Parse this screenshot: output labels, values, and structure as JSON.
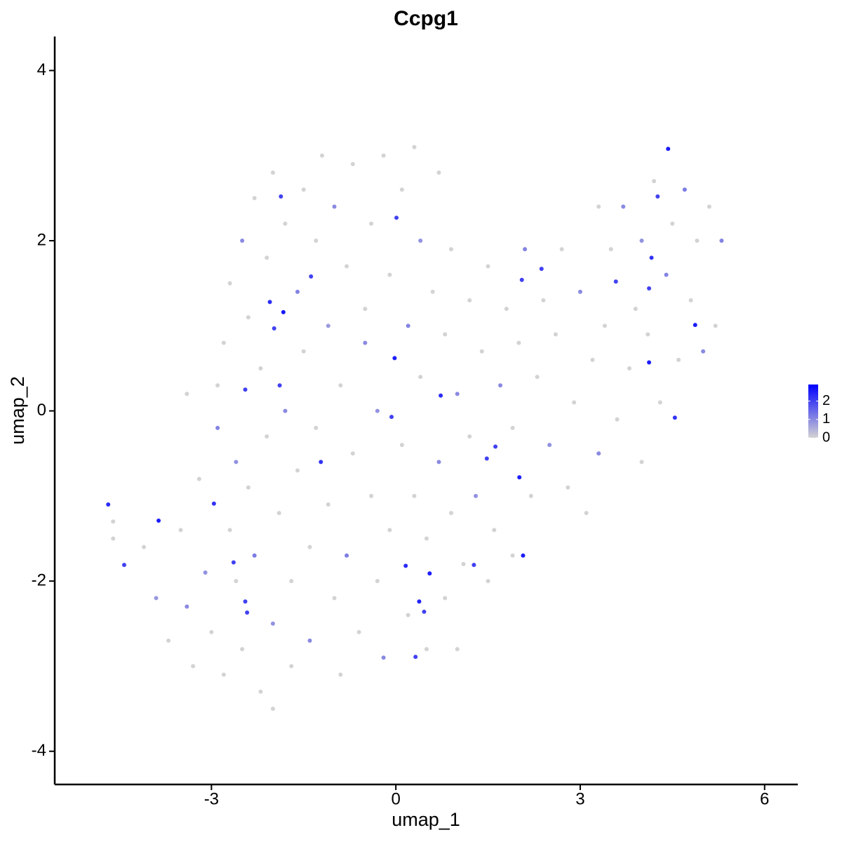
{
  "chart_data": {
    "type": "scatter",
    "title": "Ccpg1",
    "x_label": "umap_1",
    "y_label": "umap_2",
    "xlim": [
      -5.55,
      6.54
    ],
    "ylim": [
      -4.39,
      4.4
    ],
    "xticks": [
      -3,
      0,
      3,
      6
    ],
    "yticks": [
      -4,
      -2,
      0,
      2,
      4
    ],
    "x": [
      -4.1,
      -3.9,
      -3.7,
      -3.5,
      -3.4,
      -3.3,
      -3.2,
      -3.1,
      -3.0,
      -2.9,
      -2.9,
      -2.8,
      -2.8,
      -2.7,
      -2.7,
      -2.6,
      -2.6,
      -2.5,
      -2.5,
      -2.4,
      -2.4,
      -2.3,
      -2.3,
      -2.2,
      -2.2,
      -2.1,
      -2.1,
      -2.0,
      -2.0,
      -1.9,
      -1.8,
      -1.8,
      -1.7,
      -1.7,
      -1.6,
      -1.6,
      -1.5,
      -1.5,
      -1.4,
      -1.4,
      -1.3,
      -1.3,
      -1.2,
      -1.1,
      -1.1,
      -1.0,
      -1.0,
      -0.9,
      -0.9,
      -0.8,
      -0.8,
      -0.7,
      -0.7,
      -0.6,
      -0.5,
      -0.5,
      -0.4,
      -0.4,
      -0.3,
      -0.3,
      -0.2,
      -0.2,
      -0.1,
      -0.1,
      0.1,
      0.1,
      0.2,
      0.2,
      0.3,
      0.3,
      0.4,
      0.4,
      0.5,
      0.5,
      0.6,
      0.7,
      0.7,
      0.8,
      0.8,
      0.9,
      0.9,
      1.0,
      1.0,
      1.1,
      1.2,
      1.2,
      1.3,
      1.4,
      1.5,
      1.5,
      1.6,
      1.7,
      1.8,
      1.9,
      1.9,
      2.0,
      2.1,
      2.2,
      2.3,
      2.4,
      2.5,
      2.6,
      2.7,
      2.8,
      2.9,
      3.0,
      3.1,
      3.2,
      3.3,
      3.3,
      3.4,
      3.5,
      3.6,
      3.7,
      3.8,
      3.9,
      4.0,
      4.0,
      4.1,
      4.2,
      4.3,
      4.4,
      4.5,
      4.6,
      4.7,
      4.8,
      4.9,
      5.0,
      5.1,
      5.2,
      5.3,
      -4.6,
      -4.6,
      -3.4,
      -2.0,
      -4.68,
      -4.42,
      -3.86,
      -2.96,
      -2.64,
      -2.05,
      -1.83,
      -1.98,
      -1.87,
      -1.22,
      -1.38,
      0.01,
      -0.02,
      0.73,
      -0.07,
      1.48,
      1.62,
      2.01,
      2.07,
      0.16,
      0.55,
      0.38,
      0.46,
      0.32,
      1.27,
      2.05,
      2.37,
      4.12,
      4.16,
      4.12,
      4.87,
      4.54,
      4.43,
      4.26,
      3.58,
      -2.45,
      -1.89,
      -2.45,
      -2.42
    ],
    "y": [
      -1.6,
      -2.2,
      -2.7,
      -1.4,
      -2.3,
      -3.0,
      -0.8,
      -1.9,
      -2.6,
      0.3,
      -0.2,
      0.8,
      -3.1,
      1.5,
      -1.4,
      -0.6,
      -2.0,
      2.0,
      -2.8,
      1.1,
      -0.9,
      2.5,
      -1.7,
      0.5,
      -3.3,
      1.8,
      -0.3,
      -2.5,
      2.8,
      -1.2,
      0,
      2.2,
      -2.0,
      -3.0,
      1.4,
      -0.7,
      2.6,
      0.7,
      -1.6,
      -2.7,
      2.0,
      -0.2,
      3.0,
      1.0,
      -1.1,
      -2.2,
      2.4,
      0.3,
      -3.1,
      1.7,
      -1.7,
      -0.5,
      2.9,
      -2.6,
      1.2,
      0.8,
      -1.0,
      2.2,
      -2.0,
      0,
      3.0,
      -2.9,
      1.6,
      -1.4,
      2.6,
      -0.4,
      1.0,
      -2.4,
      3.1,
      -1.0,
      0.4,
      2.0,
      -2.8,
      -1.5,
      1.4,
      -0.6,
      2.8,
      -2.2,
      0.9,
      -1.2,
      1.9,
      -2.8,
      0.2,
      -1.8,
      1.3,
      -0.3,
      -1.0,
      0.7,
      1.7,
      -2.0,
      -1.4,
      0.3,
      1.2,
      -0.2,
      -1.7,
      0.8,
      1.9,
      -1.0,
      0.4,
      1.3,
      -0.4,
      0.9,
      1.9,
      -0.9,
      0.1,
      1.4,
      -1.2,
      0.6,
      2.4,
      -0.5,
      1.0,
      1.9,
      -0.1,
      2.4,
      0.5,
      1.2,
      -0.6,
      2.0,
      0.9,
      2.7,
      0.1,
      1.6,
      2.2,
      0.6,
      2.6,
      1.3,
      2.0,
      0.7,
      2.4,
      1.0,
      2.0,
      -1.3,
      -1.5,
      0.2,
      -3.5,
      -1.1,
      -1.81,
      -1.29,
      -1.09,
      -1.78,
      1.28,
      1.16,
      0.97,
      2.52,
      -0.6,
      1.58,
      2.27,
      0.62,
      0.18,
      -0.07,
      -0.56,
      -0.42,
      -0.78,
      -1.7,
      -1.82,
      -1.91,
      -2.24,
      -2.36,
      -2.89,
      -1.81,
      1.54,
      1.67,
      1.44,
      1.8,
      0.57,
      1.01,
      -0.08,
      3.08,
      2.52,
      1.52,
      0.25,
      0.3,
      -2.24,
      -2.37
    ],
    "expression": [
      0,
      0.8,
      0,
      0,
      1.0,
      0,
      0,
      0.9,
      0,
      0,
      1.1,
      0,
      0,
      0,
      0,
      0.9,
      0,
      1.0,
      0,
      0,
      0,
      0,
      1.2,
      0,
      0,
      0,
      0,
      0.9,
      0,
      0,
      1.0,
      0,
      0,
      0,
      1.1,
      0,
      0,
      0,
      0,
      1.0,
      0,
      0,
      0,
      0.8,
      0,
      0,
      1.0,
      0,
      0,
      0,
      1.2,
      0,
      0,
      0,
      0,
      1.0,
      0,
      0,
      0,
      0.9,
      0,
      1.0,
      0,
      0,
      0,
      0,
      1.1,
      0,
      0,
      0,
      0,
      0.9,
      0,
      0,
      0,
      1.0,
      0,
      0,
      0,
      0,
      0,
      0,
      1.0,
      0,
      0,
      0,
      0.9,
      0,
      0,
      0,
      0,
      1.0,
      0,
      0,
      0,
      0,
      1.1,
      0,
      0,
      0,
      0.9,
      0,
      0,
      0,
      0,
      1.0,
      0,
      0,
      0,
      1.0,
      0,
      0,
      0,
      1.0,
      0,
      0,
      0,
      0.9,
      0,
      0,
      0,
      1.1,
      0,
      0,
      1.2,
      0,
      0,
      1.0,
      0,
      0,
      1.1,
      0,
      0,
      0,
      0,
      2.3,
      2,
      2.5,
      2.2,
      2,
      2.3,
      2.6,
      2,
      2,
      2.2,
      2,
      2,
      2.5,
      2.3,
      2,
      2,
      2,
      2.5,
      2.5,
      2.3,
      2.5,
      2.4,
      2,
      2,
      2,
      2,
      2,
      2,
      2.2,
      2.5,
      2.5,
      2.2,
      2.5,
      2,
      2,
      2,
      2,
      2,
      2
    ],
    "colorbar": {
      "low": "#d3d3d3",
      "high": "#0000ff",
      "lim": [
        0,
        2.9
      ],
      "ticks": [
        0,
        1,
        2
      ]
    }
  }
}
